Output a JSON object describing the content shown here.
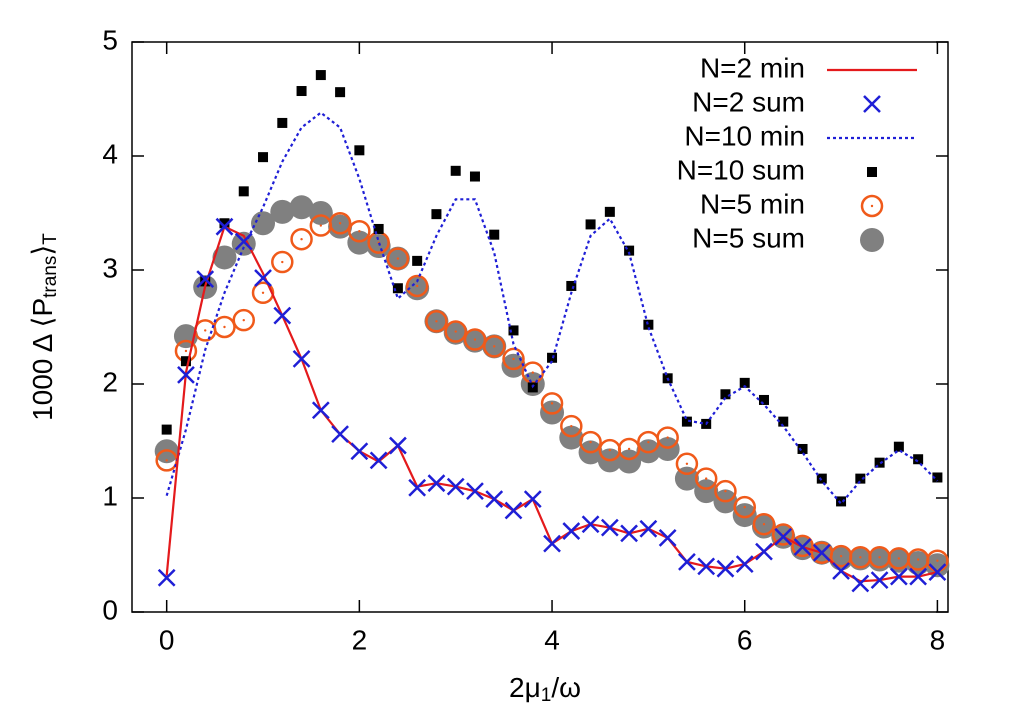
{
  "chart_data": {
    "type": "line",
    "xlabel": [
      "2μ",
      "1",
      "/ω"
    ],
    "ylabel": [
      "1000 Δ ⟨P",
      "trans",
      "⟩",
      "T"
    ],
    "x": [
      0,
      0.2,
      0.4,
      0.6,
      0.8,
      1.0,
      1.2,
      1.4,
      1.6,
      1.8,
      2.0,
      2.2,
      2.4,
      2.6,
      2.8,
      3.0,
      3.2,
      3.4,
      3.6,
      3.8,
      4.0,
      4.2,
      4.4,
      4.6,
      4.8,
      5.0,
      5.2,
      5.4,
      5.6,
      5.8,
      6.0,
      6.2,
      6.4,
      6.6,
      6.8,
      7.0,
      7.2,
      7.4,
      7.6,
      7.8,
      8.0
    ],
    "xlim": [
      -0.36,
      8.11
    ],
    "xticks": [
      0,
      2,
      4,
      6,
      8
    ],
    "ylim": [
      0,
      5
    ],
    "yticks": [
      0,
      1,
      2,
      3,
      4,
      5
    ],
    "legend": "upper right",
    "series": [
      {
        "name": "N=2 min",
        "color": "#e41a1c",
        "style": "line",
        "values": [
          0.32,
          2.1,
          2.86,
          3.38,
          3.3,
          2.97,
          2.6,
          2.22,
          1.77,
          1.56,
          1.41,
          1.32,
          1.46,
          1.1,
          1.13,
          1.1,
          1.06,
          0.99,
          0.89,
          0.99,
          0.6,
          0.71,
          0.77,
          0.74,
          0.69,
          0.73,
          0.65,
          0.44,
          0.4,
          0.38,
          0.42,
          0.53,
          0.66,
          0.57,
          0.52,
          0.36,
          0.27,
          0.28,
          0.31,
          0.31,
          0.35
        ]
      },
      {
        "name": "N=2 sum",
        "color": "#1f1fd6",
        "style": "cross",
        "values": [
          0.3,
          2.08,
          2.92,
          3.38,
          3.25,
          2.93,
          2.6,
          2.22,
          1.77,
          1.56,
          1.41,
          1.33,
          1.46,
          1.09,
          1.13,
          1.1,
          1.06,
          0.99,
          0.89,
          0.99,
          0.6,
          0.71,
          0.77,
          0.74,
          0.69,
          0.73,
          0.65,
          0.44,
          0.4,
          0.38,
          0.42,
          0.53,
          0.66,
          0.57,
          0.52,
          0.36,
          0.25,
          0.28,
          0.31,
          0.31,
          0.35
        ]
      },
      {
        "name": "N=10 min",
        "color": "#1f1fd6",
        "style": "dotted",
        "values": [
          1.02,
          1.6,
          2.3,
          2.8,
          3.2,
          3.55,
          3.95,
          4.25,
          4.38,
          4.25,
          3.8,
          3.25,
          2.75,
          2.9,
          3.3,
          3.62,
          3.62,
          3.15,
          2.35,
          1.98,
          2.2,
          2.8,
          3.3,
          3.45,
          3.15,
          2.5,
          2.05,
          1.68,
          1.65,
          1.88,
          1.98,
          1.82,
          1.63,
          1.4,
          1.15,
          0.95,
          1.15,
          1.3,
          1.42,
          1.32,
          1.15
        ]
      },
      {
        "name": "N=10 sum",
        "color": "#000000",
        "style": "square",
        "values": [
          1.6,
          2.2,
          2.9,
          3.41,
          3.69,
          3.99,
          4.29,
          4.57,
          4.71,
          4.56,
          4.05,
          3.36,
          2.84,
          3.08,
          3.49,
          3.87,
          3.82,
          3.31,
          2.47,
          1.97,
          2.23,
          2.86,
          3.4,
          3.51,
          3.17,
          2.52,
          2.05,
          1.67,
          1.65,
          1.91,
          2.01,
          1.86,
          1.67,
          1.43,
          1.17,
          0.97,
          1.17,
          1.31,
          1.45,
          1.34,
          1.18
        ]
      },
      {
        "name": "N=5 min",
        "color": "#f05a1a",
        "style": "open-circle",
        "values": [
          1.33,
          2.29,
          2.47,
          2.5,
          2.56,
          2.8,
          3.07,
          3.27,
          3.39,
          3.41,
          3.34,
          3.24,
          3.1,
          2.86,
          2.55,
          2.46,
          2.39,
          2.33,
          2.22,
          2.1,
          1.83,
          1.63,
          1.49,
          1.42,
          1.43,
          1.49,
          1.53,
          1.3,
          1.17,
          1.06,
          0.92,
          0.77,
          0.68,
          0.58,
          0.52,
          0.49,
          0.48,
          0.48,
          0.47,
          0.46,
          0.45
        ]
      },
      {
        "name": "N=5 sum",
        "color": "#808080",
        "style": "filled-circle",
        "values": [
          1.41,
          2.42,
          2.85,
          3.11,
          3.23,
          3.41,
          3.51,
          3.55,
          3.5,
          3.38,
          3.24,
          3.21,
          3.1,
          2.84,
          2.55,
          2.45,
          2.38,
          2.33,
          2.16,
          2.0,
          1.75,
          1.53,
          1.4,
          1.33,
          1.32,
          1.41,
          1.43,
          1.17,
          1.06,
          0.97,
          0.85,
          0.75,
          0.66,
          0.56,
          0.52,
          0.47,
          0.47,
          0.46,
          0.45,
          0.43,
          0.41
        ]
      }
    ]
  }
}
